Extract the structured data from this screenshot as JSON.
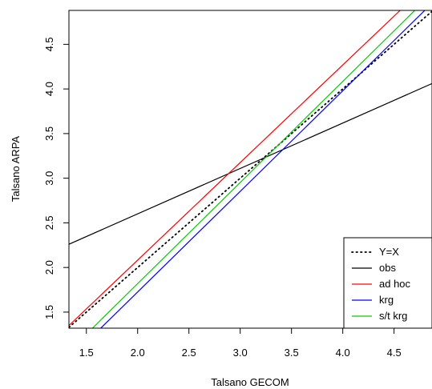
{
  "chart_data": {
    "type": "line",
    "title": "",
    "xlabel": "Talsano GECOM",
    "ylabel": "Talsano ARPA",
    "xlim": [
      1.33,
      4.87
    ],
    "ylim": [
      1.32,
      4.88
    ],
    "x_ticks": [
      "1.5",
      "2.0",
      "2.5",
      "3.0",
      "3.5",
      "4.0",
      "4.5"
    ],
    "y_ticks": [
      "1.5",
      "2.0",
      "2.5",
      "3.0",
      "3.5",
      "4.0",
      "4.5"
    ],
    "grid": false,
    "legend_position": "bottom-right",
    "series": [
      {
        "name": "Y=X",
        "style": "dotted",
        "color": "#000000",
        "x": [
          1.33,
          4.87
        ],
        "y": [
          1.33,
          4.87
        ]
      },
      {
        "name": "obs",
        "style": "solid",
        "color": "#000000",
        "x": [
          1.33,
          4.87
        ],
        "y": [
          2.26,
          4.06
        ]
      },
      {
        "name": "ad hoc",
        "style": "solid",
        "color": "#ff0000",
        "x": [
          1.33,
          4.87
        ],
        "y": [
          1.35,
          5.22
        ]
      },
      {
        "name": "krg",
        "style": "solid",
        "color": "#0000ff",
        "x": [
          1.33,
          4.87
        ],
        "y": [
          0.97,
          4.96
        ]
      },
      {
        "name": "s/t krg",
        "style": "solid",
        "color": "#00cc00",
        "x": [
          1.33,
          4.87
        ],
        "y": [
          1.06,
          5.07
        ]
      }
    ]
  }
}
